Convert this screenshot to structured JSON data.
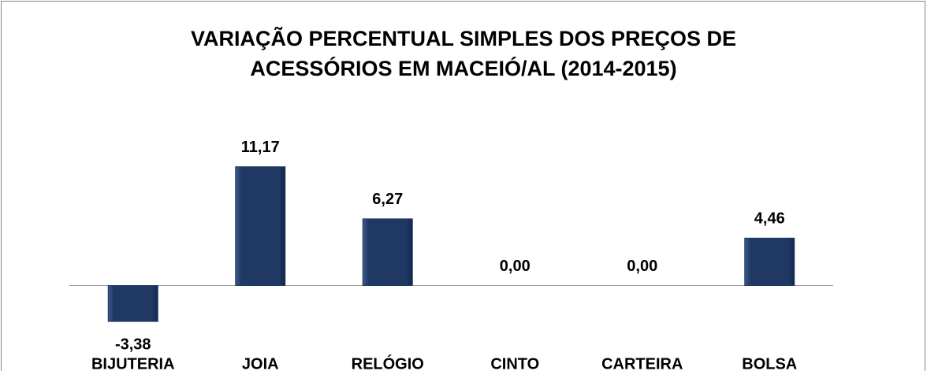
{
  "chart_data": {
    "type": "bar",
    "title": [
      "VARIAÇÃO PERCENTUAL SIMPLES DOS PREÇOS DE",
      "ACESSÓRIOS EM MACEIÓ/AL (2014-2015)"
    ],
    "categories": [
      "BIJUTERIA",
      "JOIA",
      "RELÓGIO",
      "CINTO",
      "CARTEIRA",
      "BOLSA"
    ],
    "values": [
      -3.38,
      11.17,
      6.27,
      0,
      0,
      4.46
    ],
    "value_labels": [
      "-3,38",
      "11,17",
      "6,27",
      "0,00",
      "0,00",
      "4,46"
    ],
    "color": "#1f3864",
    "ylim": [
      -8,
      15
    ],
    "grid": false
  }
}
